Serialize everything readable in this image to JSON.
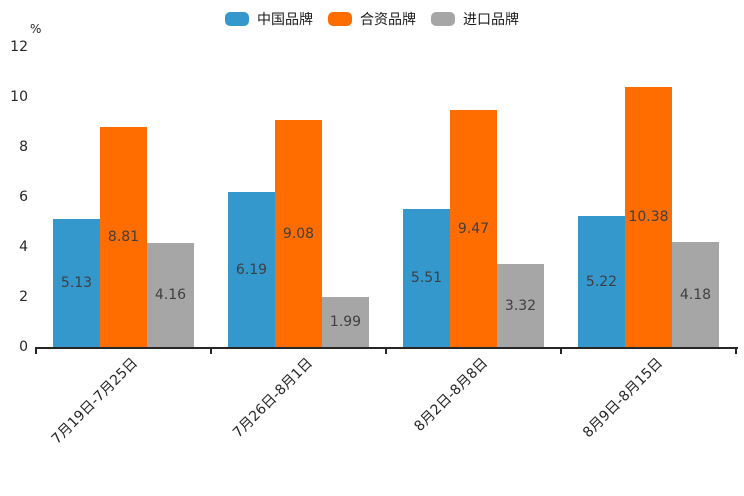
{
  "chart_data": {
    "type": "bar",
    "title": "",
    "ylabel": "%",
    "xlabel": "",
    "ylim": [
      0,
      12
    ],
    "yticks": [
      0,
      2,
      4,
      6,
      8,
      10,
      12
    ],
    "grid": false,
    "legend_position": "top-center",
    "categories": [
      "7月19日-7月25日",
      "7月26日-8月1日",
      "8月2日-8月8日",
      "8月9日-8月15日"
    ],
    "series": [
      {
        "name": "中国品牌",
        "color": "#3498CD",
        "values": [
          5.13,
          6.19,
          5.51,
          5.22
        ]
      },
      {
        "name": "合资品牌",
        "color": "#FF6D01",
        "values": [
          8.81,
          9.08,
          9.47,
          10.38
        ]
      },
      {
        "name": "进口品牌",
        "color": "#A6A6A6",
        "values": [
          4.16,
          1.99,
          3.32,
          4.18
        ]
      }
    ],
    "value_labels_shown": true,
    "value_label_color": "#3f3f3f",
    "axis_color": "#262626"
  }
}
